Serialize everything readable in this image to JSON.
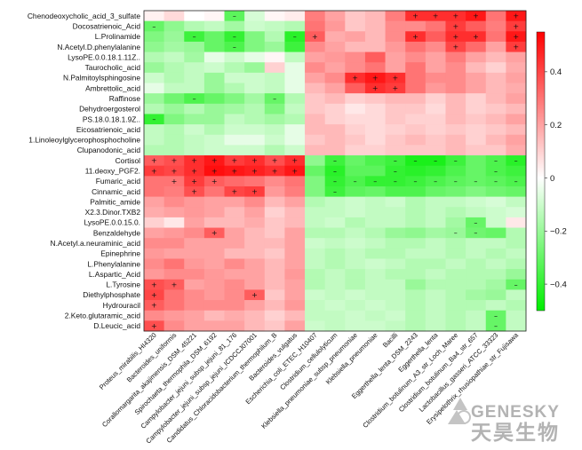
{
  "chart_data": {
    "type": "heatmap",
    "rows": [
      "Chenodeoxycholic_acid_3_sulfate",
      "Docosatrienoic_Acid",
      "L.Prolinamide",
      "N.Acetyl.D.phenylalanine",
      "LysoPE.0.0.18.1.11Z..",
      "Taurocholic_acid",
      "N.Palmitoylsphingosine",
      "Ambrettolic_acid",
      "Raffinose",
      "Dehydroergosterol",
      "PS.18.0.18.1.9Z..",
      "Eicosatrienoic_acid",
      "1.Linoleoylglycerophosphocholine",
      "Clupanodonic_acid",
      "Cortisol",
      "11.deoxy_PGF2.",
      "Fumaric_acid",
      "Cinnamic_acid",
      "Palmitic_amide",
      "X2.3.Dinor.TXB2",
      "LysoPE.0.0.15.0.",
      "Benzaldehyde",
      "N.Acetyl.a.neuraminic_acid",
      "Epinephrine",
      "L.Phenylalanine",
      "L.Aspartic_Acid",
      "L.Tyrosine",
      "Diethylphosphate",
      "Hydrouracil",
      "2.Keto.glutaramic_acid",
      "D.Leucic_acid"
    ],
    "columns": [
      "Proteus_mirabilis_HI4320",
      "Bacteroides_uniformis",
      "Corallomargarita_akajimensis_DSM_45221",
      "Spirochaeta_thermophila_DSM_6192",
      "Campylobacter_jejuni_subsp_jejuni_81_176",
      "Campylobacter_jejuni_subsp_jejuni_ICDCCJ07001",
      "Candidatus_Chloracidobacterium_thermophilum_B",
      "Bacteroides_vulgatus",
      "Escherichia_coli_ETEC_H10407",
      "Clostridium_cellulolyticum",
      "Klebsiella_pneumoniae_subsp_pneumoniae",
      "Klebsiella_pneumoniae",
      "Bacilli",
      "Eggerthella_lenta_DSM_2243",
      "Eggerthella_lenta",
      "Clostridium_botulinum_A3_str_Loch_Maree",
      "Clostridium_botulinum_Ba4_str_657",
      "Lactobacillus_gasseri_ATCC_33323",
      "Erysipelothrix_rhusiopathiae_str_Fujisawa"
    ],
    "column_label_colors": {
      "Bacteroides_vulgatus": "#3333cc",
      "Eggerthella_lenta_DSM_2243": "#dd1111",
      "Eggerthella_lenta": "#dd1111",
      "Clostridium_botulinum_A3_str_Loch_Maree": "#dd1111",
      "Clostridium_botulinum_Ba4_str_657": "#dd1111"
    },
    "values": [
      [
        0.03,
        0.08,
        0.0,
        0.02,
        -0.32,
        -0.08,
        0.02,
        0.04,
        0.28,
        0.2,
        0.12,
        0.15,
        0.28,
        0.45,
        0.45,
        0.45,
        0.5,
        0.3,
        0.5
      ],
      [
        -0.3,
        -0.22,
        -0.15,
        -0.12,
        -0.18,
        -0.1,
        -0.12,
        -0.15,
        0.3,
        0.22,
        0.12,
        0.15,
        0.25,
        0.25,
        0.3,
        0.42,
        0.35,
        0.28,
        0.42
      ],
      [
        -0.25,
        -0.2,
        -0.38,
        -0.3,
        -0.4,
        -0.25,
        -0.15,
        -0.42,
        0.35,
        0.18,
        0.2,
        0.15,
        0.25,
        0.45,
        0.35,
        0.45,
        0.45,
        0.3,
        0.5
      ],
      [
        -0.22,
        -0.18,
        -0.2,
        -0.3,
        -0.35,
        -0.25,
        -0.2,
        -0.38,
        0.25,
        0.2,
        0.15,
        0.15,
        0.22,
        0.3,
        0.25,
        0.4,
        0.32,
        0.2,
        0.42
      ],
      [
        -0.15,
        -0.12,
        -0.18,
        -0.05,
        -0.1,
        -0.05,
        0.02,
        -0.12,
        0.2,
        0.22,
        0.25,
        0.35,
        0.2,
        0.25,
        0.2,
        0.28,
        0.2,
        0.15,
        0.2
      ],
      [
        -0.2,
        -0.15,
        -0.12,
        -0.1,
        -0.15,
        -0.2,
        0.1,
        -0.05,
        0.25,
        0.2,
        0.25,
        0.3,
        0.2,
        0.3,
        0.2,
        0.25,
        0.15,
        0.1,
        0.18
      ],
      [
        -0.1,
        -0.15,
        -0.12,
        -0.2,
        -0.1,
        -0.1,
        -0.12,
        -0.05,
        0.2,
        0.25,
        0.45,
        0.5,
        0.45,
        0.3,
        0.25,
        0.25,
        0.2,
        0.15,
        0.2
      ],
      [
        -0.05,
        -0.12,
        -0.12,
        -0.2,
        -0.15,
        -0.1,
        -0.12,
        -0.05,
        0.15,
        0.2,
        0.35,
        0.45,
        0.42,
        0.3,
        0.22,
        0.25,
        0.2,
        0.15,
        0.18
      ],
      [
        -0.2,
        -0.28,
        -0.35,
        -0.3,
        -0.25,
        -0.18,
        -0.3,
        -0.15,
        0.12,
        0.15,
        0.1,
        0.12,
        0.15,
        0.15,
        0.1,
        0.15,
        0.1,
        0.15,
        0.2
      ],
      [
        -0.15,
        -0.2,
        -0.15,
        -0.2,
        -0.18,
        -0.15,
        -0.25,
        -0.12,
        0.12,
        0.1,
        0.05,
        0.08,
        0.12,
        0.12,
        0.08,
        0.15,
        0.1,
        0.12,
        0.15
      ],
      [
        -0.4,
        -0.25,
        -0.2,
        -0.2,
        -0.12,
        -0.15,
        -0.18,
        -0.15,
        0.15,
        0.1,
        0.08,
        0.08,
        0.12,
        0.1,
        0.1,
        0.15,
        0.12,
        0.15,
        0.2
      ],
      [
        -0.12,
        -0.15,
        -0.1,
        -0.15,
        -0.1,
        -0.1,
        -0.12,
        -0.05,
        0.15,
        0.15,
        0.1,
        0.08,
        0.1,
        0.12,
        0.1,
        0.12,
        0.1,
        0.12,
        0.15
      ],
      [
        -0.12,
        -0.15,
        -0.12,
        -0.1,
        -0.05,
        -0.05,
        -0.1,
        -0.05,
        0.12,
        0.15,
        0.12,
        0.08,
        0.12,
        0.15,
        0.12,
        0.15,
        0.1,
        0.15,
        0.2
      ],
      [
        -0.15,
        -0.15,
        -0.12,
        -0.1,
        -0.1,
        -0.1,
        -0.15,
        -0.1,
        0.15,
        0.15,
        0.1,
        0.1,
        0.12,
        0.12,
        0.12,
        0.15,
        0.12,
        0.12,
        0.18
      ],
      [
        0.35,
        0.38,
        0.45,
        0.5,
        0.42,
        0.45,
        0.38,
        0.45,
        -0.22,
        -0.38,
        -0.3,
        -0.35,
        -0.38,
        -0.45,
        -0.45,
        -0.38,
        -0.3,
        -0.35,
        -0.42
      ],
      [
        0.42,
        0.4,
        0.45,
        0.52,
        0.5,
        0.48,
        0.45,
        0.5,
        -0.3,
        -0.42,
        -0.32,
        -0.32,
        -0.4,
        -0.42,
        -0.4,
        -0.35,
        -0.3,
        -0.35,
        -0.38
      ],
      [
        0.3,
        0.3,
        0.42,
        0.35,
        0.32,
        0.3,
        0.25,
        0.3,
        -0.25,
        -0.4,
        -0.35,
        -0.4,
        -0.4,
        -0.38,
        -0.35,
        -0.32,
        -0.3,
        -0.32,
        -0.35
      ],
      [
        0.3,
        0.28,
        0.38,
        0.3,
        0.4,
        0.42,
        0.22,
        0.28,
        -0.25,
        -0.38,
        -0.32,
        -0.3,
        -0.35,
        -0.35,
        -0.3,
        -0.28,
        -0.25,
        -0.28,
        -0.3
      ],
      [
        0.2,
        0.25,
        0.22,
        0.2,
        0.2,
        0.25,
        0.15,
        0.2,
        -0.15,
        -0.12,
        -0.1,
        -0.12,
        -0.1,
        -0.15,
        -0.12,
        -0.12,
        -0.1,
        -0.08,
        -0.12
      ],
      [
        0.18,
        0.2,
        0.22,
        0.2,
        0.15,
        0.2,
        0.1,
        0.15,
        -0.12,
        -0.12,
        -0.1,
        -0.12,
        -0.12,
        -0.15,
        -0.12,
        -0.15,
        -0.12,
        -0.1,
        -0.08
      ],
      [
        0.1,
        0.05,
        0.2,
        0.15,
        0.15,
        0.18,
        0.12,
        0.15,
        -0.12,
        -0.1,
        -0.15,
        -0.12,
        -0.12,
        -0.15,
        -0.12,
        -0.18,
        -0.3,
        -0.1,
        0.05
      ],
      [
        0.2,
        0.22,
        0.25,
        0.35,
        0.2,
        0.15,
        0.12,
        0.2,
        -0.15,
        -0.15,
        -0.12,
        -0.15,
        -0.2,
        -0.22,
        -0.18,
        -0.2,
        -0.28,
        -0.3,
        -0.15
      ],
      [
        0.25,
        0.25,
        0.2,
        0.2,
        0.2,
        0.15,
        0.15,
        0.2,
        -0.1,
        -0.12,
        -0.1,
        -0.12,
        -0.15,
        -0.15,
        -0.12,
        -0.15,
        -0.12,
        -0.12,
        -0.15
      ],
      [
        0.22,
        0.2,
        0.2,
        0.2,
        0.15,
        0.15,
        0.12,
        0.2,
        -0.12,
        -0.15,
        -0.12,
        -0.15,
        -0.15,
        -0.12,
        -0.12,
        -0.15,
        -0.12,
        -0.15,
        -0.12
      ],
      [
        0.25,
        0.3,
        0.22,
        0.2,
        0.25,
        0.2,
        0.15,
        0.2,
        -0.12,
        -0.15,
        -0.12,
        -0.1,
        -0.12,
        -0.15,
        -0.15,
        -0.12,
        -0.15,
        -0.12,
        -0.15
      ],
      [
        0.22,
        0.25,
        0.25,
        0.22,
        0.2,
        0.2,
        0.15,
        0.22,
        -0.15,
        -0.12,
        -0.15,
        -0.12,
        -0.15,
        -0.15,
        -0.12,
        -0.15,
        -0.15,
        -0.15,
        -0.2
      ],
      [
        0.38,
        0.35,
        0.2,
        0.22,
        0.25,
        0.2,
        0.15,
        0.2,
        -0.15,
        -0.12,
        -0.15,
        -0.12,
        -0.12,
        -0.2,
        -0.15,
        -0.15,
        -0.15,
        -0.18,
        -0.3
      ],
      [
        0.4,
        0.3,
        0.25,
        0.22,
        0.25,
        0.35,
        0.12,
        0.2,
        -0.1,
        -0.12,
        -0.1,
        -0.12,
        -0.12,
        -0.15,
        -0.12,
        -0.15,
        -0.18,
        -0.2,
        -0.12
      ],
      [
        0.35,
        0.3,
        0.25,
        0.25,
        0.25,
        0.2,
        0.15,
        0.22,
        -0.12,
        -0.1,
        -0.12,
        -0.1,
        -0.12,
        -0.15,
        -0.12,
        -0.15,
        -0.15,
        -0.12,
        -0.15
      ],
      [
        0.25,
        0.22,
        0.2,
        0.15,
        0.18,
        0.15,
        0.1,
        0.15,
        -0.12,
        -0.12,
        -0.1,
        -0.12,
        -0.1,
        -0.15,
        -0.12,
        -0.15,
        -0.12,
        -0.3,
        -0.12
      ],
      [
        0.38,
        0.25,
        0.2,
        0.2,
        0.2,
        0.15,
        0.12,
        0.2,
        -0.1,
        -0.12,
        -0.1,
        -0.1,
        -0.12,
        -0.15,
        -0.12,
        -0.15,
        -0.12,
        -0.3,
        -0.12
      ]
    ],
    "significance": [
      [
        "",
        "",
        "",
        "",
        "-",
        "",
        "",
        "",
        "",
        "",
        "",
        "",
        "",
        "+",
        "+",
        "+",
        "+",
        "",
        "+"
      ],
      [
        "-",
        "",
        "",
        "",
        "",
        "",
        "",
        "",
        "",
        "",
        "",
        "",
        "",
        "",
        "",
        "+",
        "",
        "",
        "+"
      ],
      [
        "",
        "",
        "-",
        "",
        "-",
        "",
        "",
        "-",
        "+",
        "",
        "",
        "",
        "",
        "+",
        "",
        "+",
        "+",
        "",
        "+"
      ],
      [
        "",
        "",
        "",
        "",
        "-",
        "",
        "",
        "",
        "",
        "",
        "",
        "",
        "",
        "",
        "",
        "+",
        "",
        "",
        "+"
      ],
      [
        "",
        "",
        "",
        "",
        "",
        "",
        "",
        "",
        "",
        "",
        "",
        "",
        "",
        "",
        "",
        "",
        "",
        "",
        ""
      ],
      [
        "",
        "",
        "",
        "",
        "",
        "",
        "",
        "",
        "",
        "",
        "",
        "",
        "",
        "",
        "",
        "",
        "",
        "",
        ""
      ],
      [
        "",
        "",
        "",
        "",
        "",
        "",
        "",
        "",
        "",
        "",
        "+",
        "+",
        "+",
        "",
        "",
        "",
        "",
        "",
        ""
      ],
      [
        "",
        "",
        "",
        "",
        "",
        "",
        "",
        "",
        "",
        "",
        "",
        "+",
        "+",
        "",
        "",
        "",
        "",
        "",
        ""
      ],
      [
        "",
        "",
        "-",
        "",
        "",
        "",
        "-",
        "",
        "",
        "",
        "",
        "",
        "",
        "",
        "",
        "",
        "",
        "",
        ""
      ],
      [
        "",
        "",
        "",
        "",
        "",
        "",
        "",
        "",
        "",
        "",
        "",
        "",
        "",
        "",
        "",
        "",
        "",
        "",
        ""
      ],
      [
        "-",
        "",
        "",
        "",
        "",
        "",
        "",
        "",
        "",
        "",
        "",
        "",
        "",
        "",
        "",
        "",
        "",
        "",
        ""
      ],
      [
        "",
        "",
        "",
        "",
        "",
        "",
        "",
        "",
        "",
        "",
        "",
        "",
        "",
        "",
        "",
        "",
        "",
        "",
        ""
      ],
      [
        "",
        "",
        "",
        "",
        "",
        "",
        "",
        "",
        "",
        "",
        "",
        "",
        "",
        "",
        "",
        "",
        "",
        "",
        ""
      ],
      [
        "",
        "",
        "",
        "",
        "",
        "",
        "",
        "",
        "",
        "",
        "",
        "",
        "",
        "",
        "",
        "",
        "",
        "",
        ""
      ],
      [
        "+",
        "+",
        "+",
        "+",
        "+",
        "+",
        "+",
        "+",
        "",
        "-",
        "",
        "",
        "-",
        "-",
        "-",
        "-",
        "",
        "-",
        "-"
      ],
      [
        "+",
        "+",
        "+",
        "+",
        "+",
        "+",
        "+",
        "+",
        "",
        "-",
        "",
        "",
        "-",
        "",
        "",
        "",
        "",
        "-",
        ""
      ],
      [
        "",
        "+",
        "+",
        "+",
        "",
        "",
        "",
        "",
        "",
        "-",
        "-",
        "-",
        "-",
        "-",
        "-",
        "-",
        "-",
        "-",
        "-"
      ],
      [
        "",
        "",
        "+",
        "",
        "+",
        "+",
        "",
        "",
        "",
        "-",
        "",
        "",
        "",
        "",
        "",
        "",
        "",
        "",
        ""
      ],
      [
        "",
        "",
        "",
        "",
        "",
        "",
        "",
        "",
        "",
        "",
        "",
        "",
        "",
        "",
        "",
        "",
        "",
        "",
        ""
      ],
      [
        "",
        "",
        "",
        "",
        "",
        "",
        "",
        "",
        "",
        "",
        "",
        "",
        "",
        "",
        "",
        "",
        "",
        "",
        ""
      ],
      [
        "",
        "",
        "",
        "",
        "",
        "",
        "",
        "",
        "",
        "",
        "",
        "",
        "",
        "",
        "",
        "",
        "-",
        "",
        ""
      ],
      [
        "",
        "",
        "",
        "+",
        "",
        "",
        "",
        "",
        "",
        "",
        "",
        "",
        "",
        "",
        "",
        "-",
        "-",
        "",
        ""
      ],
      [
        "",
        "",
        "",
        "",
        "",
        "",
        "",
        "",
        "",
        "",
        "",
        "",
        "",
        "",
        "",
        "",
        "",
        "",
        ""
      ],
      [
        "",
        "",
        "",
        "",
        "",
        "",
        "",
        "",
        "",
        "",
        "",
        "",
        "",
        "",
        "",
        "",
        "",
        "",
        ""
      ],
      [
        "",
        "",
        "",
        "",
        "",
        "",
        "",
        "",
        "",
        "",
        "",
        "",
        "",
        "",
        "",
        "",
        "",
        "",
        ""
      ],
      [
        "",
        "",
        "",
        "",
        "",
        "",
        "",
        "",
        "",
        "",
        "",
        "",
        "",
        "",
        "",
        "",
        "",
        "",
        ""
      ],
      [
        "+",
        "+",
        "",
        "",
        "",
        "",
        "",
        "",
        "",
        "",
        "",
        "",
        "",
        "",
        "",
        "",
        "",
        "",
        "-"
      ],
      [
        "+",
        "",
        "",
        "",
        "",
        "+",
        "",
        "",
        "",
        "",
        "",
        "",
        "",
        "",
        "",
        "",
        "",
        "",
        ""
      ],
      [
        "+",
        "",
        "",
        "",
        "",
        "",
        "",
        "",
        "",
        "",
        "",
        "",
        "",
        "",
        "",
        "",
        "",
        "",
        ""
      ],
      [
        "",
        "",
        "",
        "",
        "",
        "",
        "",
        "",
        "",
        "",
        "",
        "",
        "",
        "",
        "",
        "",
        "",
        "-",
        ""
      ],
      [
        "+",
        "",
        "",
        "",
        "",
        "",
        "",
        "",
        "",
        "",
        "",
        "",
        "",
        "",
        "",
        "",
        "",
        "-",
        ""
      ]
    ],
    "color_scale": {
      "min": -0.5,
      "max": 0.55,
      "low_color": "#00ee00",
      "mid_color": "#ffffff",
      "high_color": "#ff0000",
      "ticks": [
        0.4,
        0.2,
        0,
        -0.2,
        -0.4
      ],
      "tick_labels": [
        "0.4",
        "0.2",
        "0",
        "−0.2",
        "−0.4"
      ]
    }
  },
  "watermark": {
    "en": "GENESKY",
    "cn": "天昊生物"
  }
}
